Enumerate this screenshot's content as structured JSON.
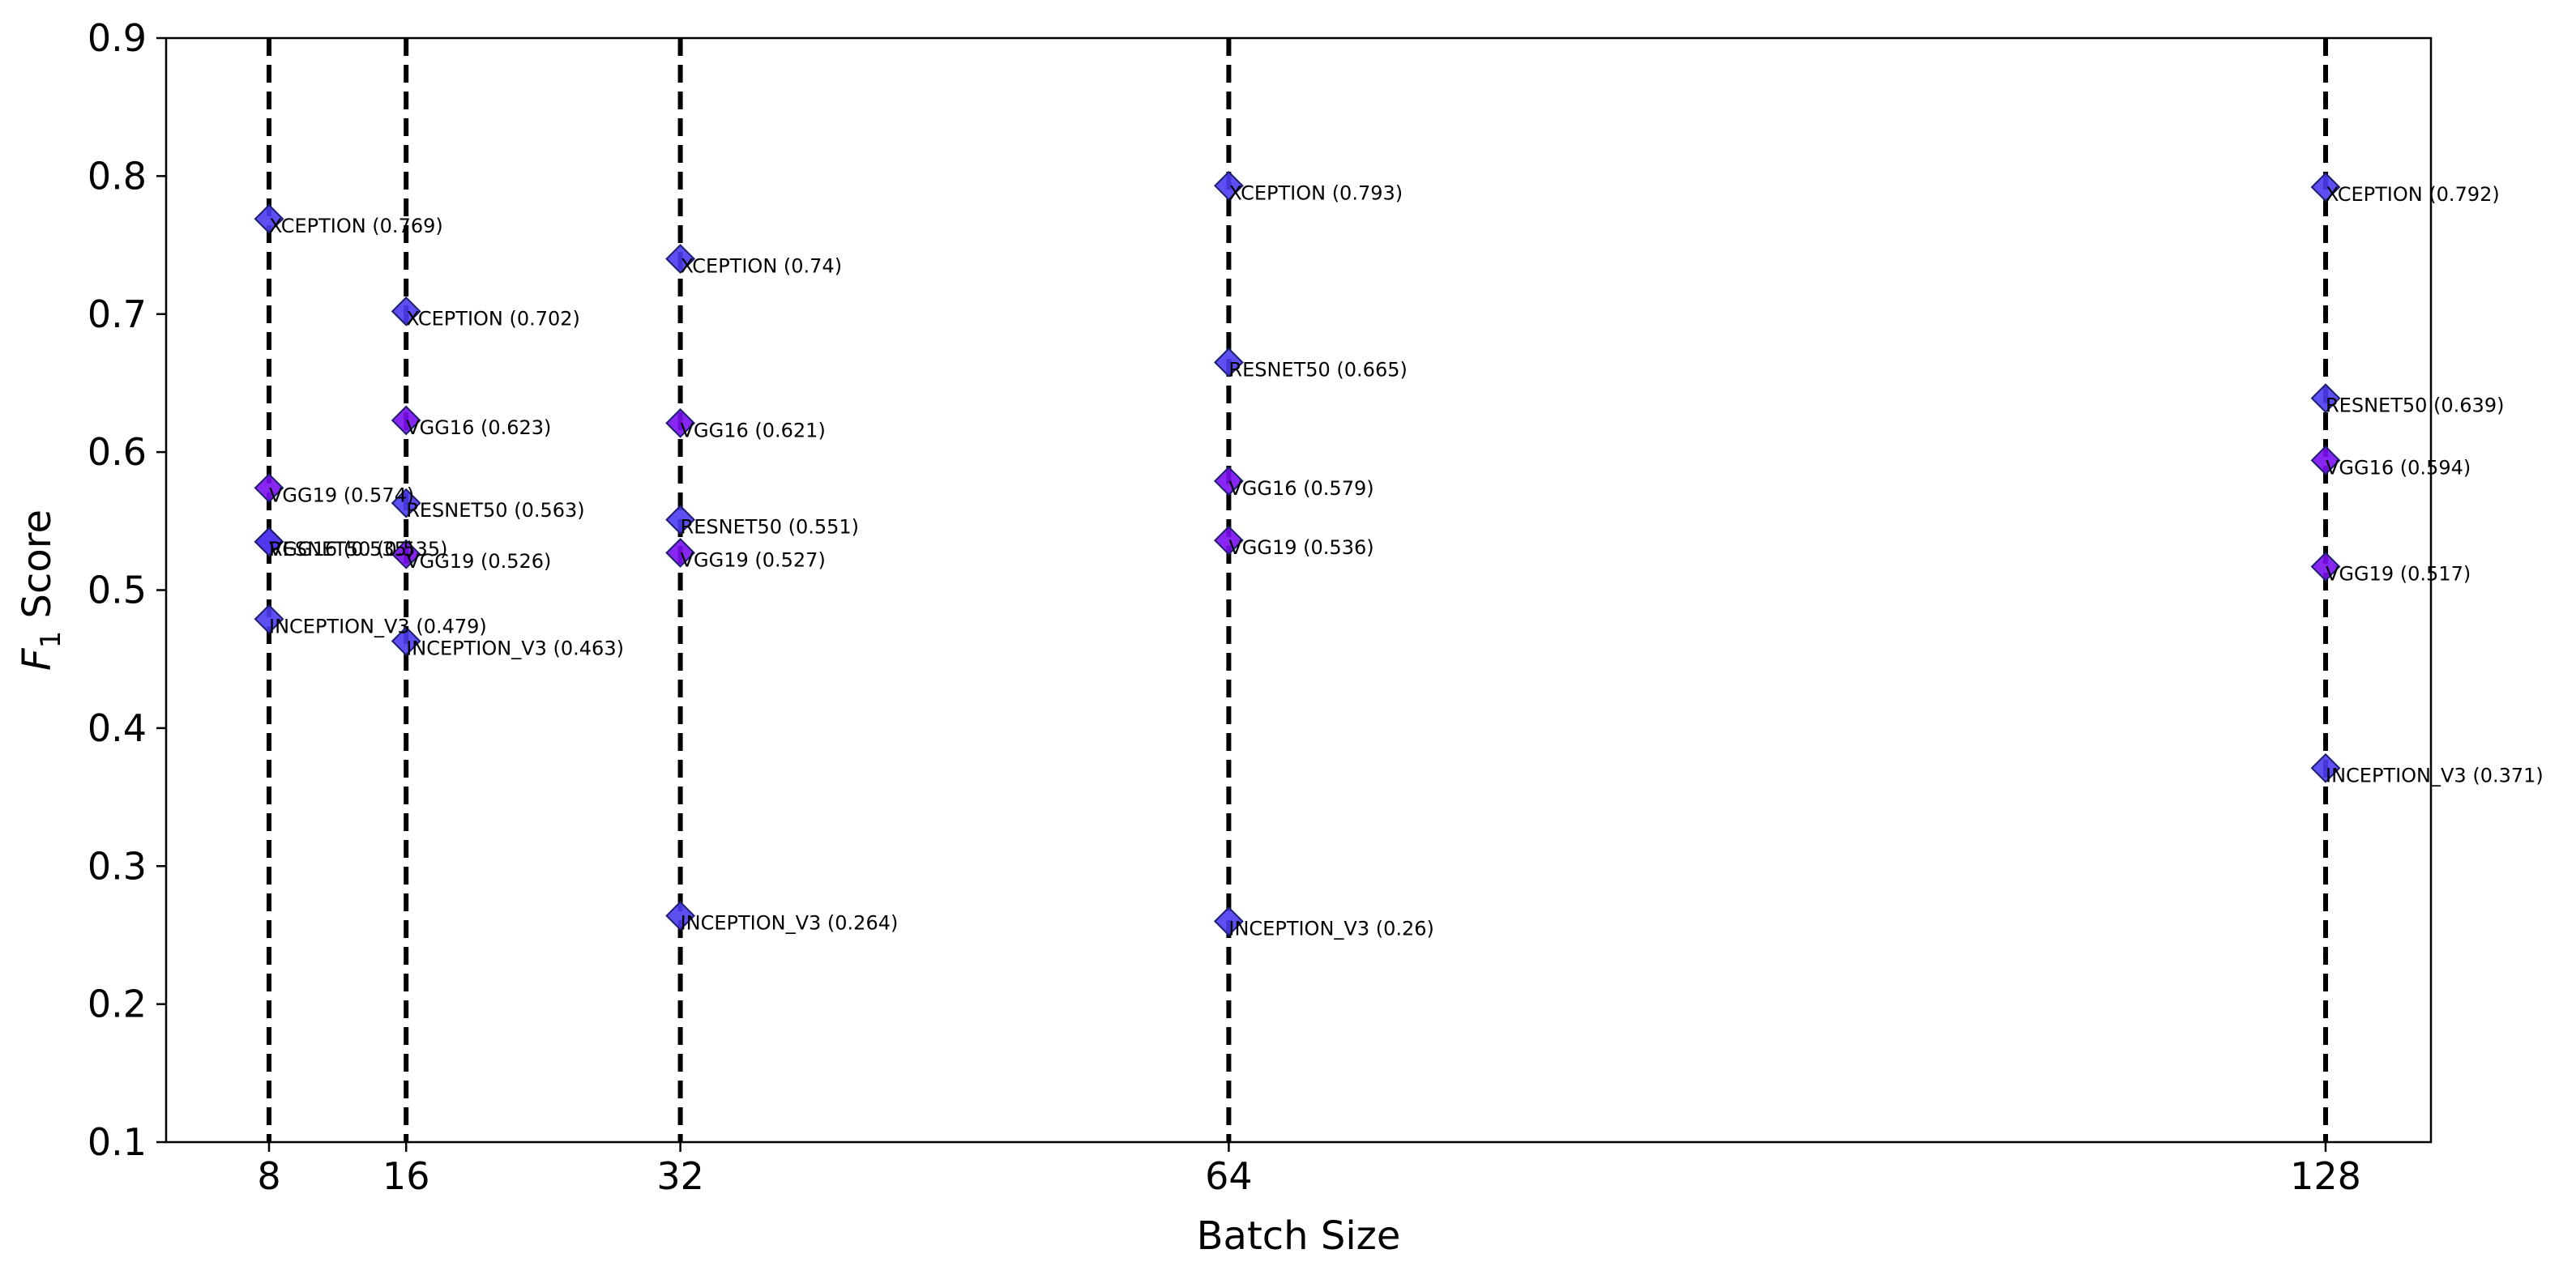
{
  "chart_data": {
    "type": "scatter",
    "xlabel": "Batch Size",
    "ylabel_parts": {
      "F": "F",
      "sub": "1",
      "rest": "Score"
    },
    "x_ticks": [
      8,
      16,
      32,
      64,
      128
    ],
    "ylim": [
      0.1,
      0.9
    ],
    "y_ticks": [
      "0.1",
      "0.2",
      "0.3",
      "0.4",
      "0.5",
      "0.6",
      "0.7",
      "0.8",
      "0.9"
    ],
    "vertical_dashed_lines_at": [
      8,
      16,
      32,
      64,
      128
    ],
    "grid": false,
    "marker": "diamond",
    "colors": {
      "blue_marker": "#4b3cf0",
      "purple_marker": "#7a10f0",
      "edge": "#1e1e6e",
      "dash": "#000000"
    },
    "points": [
      {
        "x": 8,
        "y": 0.769,
        "label": "XCEPTION (0.769)",
        "color": "blue"
      },
      {
        "x": 8,
        "y": 0.574,
        "label": "VGG19 (0.574)",
        "color": "purple"
      },
      {
        "x": 8,
        "y": 0.535,
        "label": "VGG16 (0.535)",
        "color": "purple"
      },
      {
        "x": 8,
        "y": 0.535,
        "label": "RESNET50 (0.535)",
        "color": "blue"
      },
      {
        "x": 8,
        "y": 0.479,
        "label": "INCEPTION_V3 (0.479)",
        "color": "blue"
      },
      {
        "x": 16,
        "y": 0.702,
        "label": "XCEPTION (0.702)",
        "color": "blue"
      },
      {
        "x": 16,
        "y": 0.623,
        "label": "VGG16 (0.623)",
        "color": "purple"
      },
      {
        "x": 16,
        "y": 0.563,
        "label": "RESNET50 (0.563)",
        "color": "blue"
      },
      {
        "x": 16,
        "y": 0.526,
        "label": "VGG19 (0.526)",
        "color": "purple"
      },
      {
        "x": 16,
        "y": 0.463,
        "label": "INCEPTION_V3 (0.463)",
        "color": "blue"
      },
      {
        "x": 32,
        "y": 0.74,
        "label": "XCEPTION (0.74)",
        "color": "blue"
      },
      {
        "x": 32,
        "y": 0.621,
        "label": "VGG16 (0.621)",
        "color": "purple"
      },
      {
        "x": 32,
        "y": 0.551,
        "label": "RESNET50 (0.551)",
        "color": "blue"
      },
      {
        "x": 32,
        "y": 0.527,
        "label": "VGG19 (0.527)",
        "color": "purple"
      },
      {
        "x": 32,
        "y": 0.264,
        "label": "INCEPTION_V3 (0.264)",
        "color": "blue"
      },
      {
        "x": 64,
        "y": 0.793,
        "label": "XCEPTION (0.793)",
        "color": "blue"
      },
      {
        "x": 64,
        "y": 0.665,
        "label": "RESNET50 (0.665)",
        "color": "blue"
      },
      {
        "x": 64,
        "y": 0.579,
        "label": "VGG16 (0.579)",
        "color": "purple"
      },
      {
        "x": 64,
        "y": 0.536,
        "label": "VGG19 (0.536)",
        "color": "purple"
      },
      {
        "x": 64,
        "y": 0.26,
        "label": "INCEPTION_V3 (0.26)",
        "color": "blue"
      },
      {
        "x": 128,
        "y": 0.792,
        "label": "XCEPTION (0.792)",
        "color": "blue"
      },
      {
        "x": 128,
        "y": 0.639,
        "label": "RESNET50 (0.639)",
        "color": "blue"
      },
      {
        "x": 128,
        "y": 0.594,
        "label": "VGG16 (0.594)",
        "color": "purple"
      },
      {
        "x": 128,
        "y": 0.517,
        "label": "VGG19 (0.517)",
        "color": "purple"
      },
      {
        "x": 128,
        "y": 0.371,
        "label": "INCEPTION_V3 (0.371)",
        "color": "blue"
      }
    ]
  }
}
